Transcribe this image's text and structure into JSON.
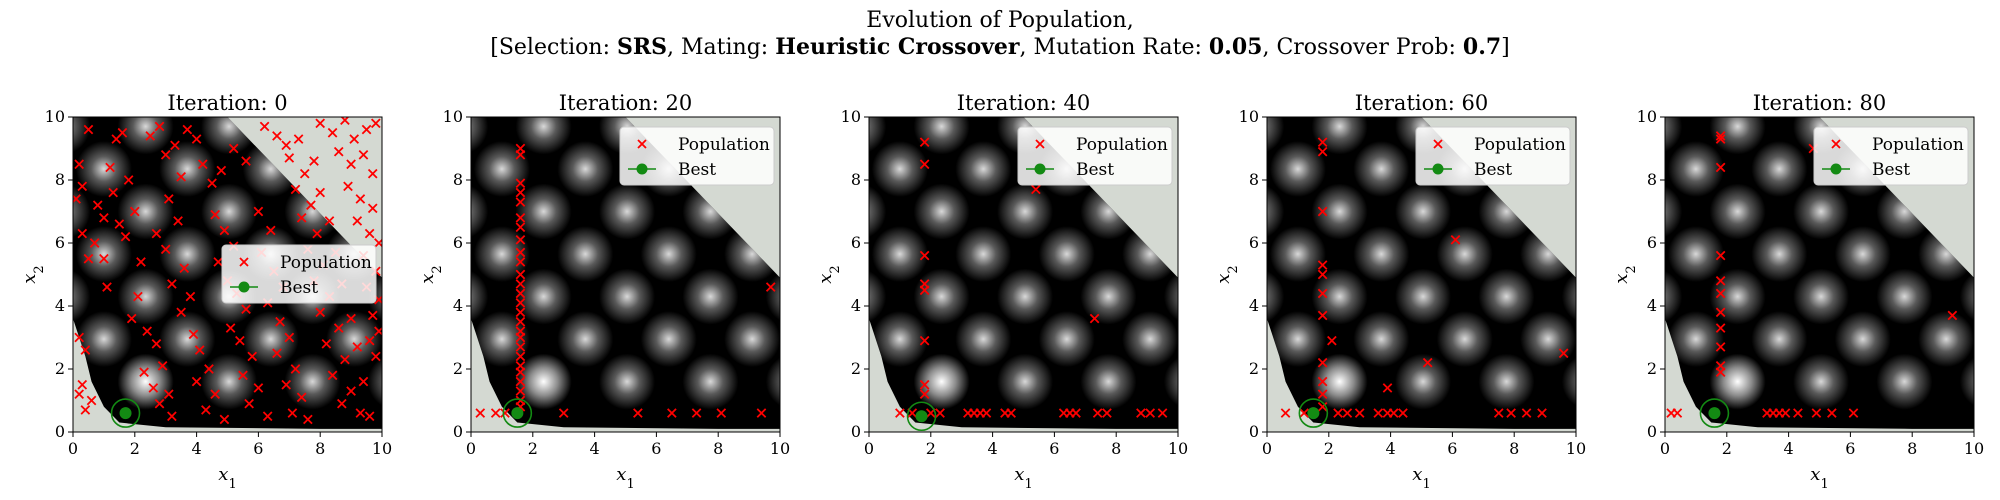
{
  "suptitle": {
    "line1": "Evolution of Population,",
    "selection_label": "Selection: ",
    "selection_value": "SRS",
    "mating_label": ", Mating: ",
    "mating_value": "Heuristic Crossover",
    "mutation_label": ", Mutation Rate: ",
    "mutation_value": "0.05",
    "crossover_label": ", Crossover Prob: ",
    "crossover_value": "0.7"
  },
  "legend": {
    "population": "Population",
    "best": "Best"
  },
  "colors": {
    "population": "#ff0000",
    "best": "#138a13",
    "infeasible": "#d4d9d2",
    "background": "#000000"
  },
  "chart_data": [
    {
      "type": "scatter",
      "title": "Iteration: 0",
      "xlabel": "x1",
      "ylabel": "x2",
      "xlim": [
        0,
        10
      ],
      "ylim": [
        0,
        10
      ],
      "xticks": [
        0,
        2,
        4,
        6,
        8,
        10
      ],
      "yticks": [
        0,
        2,
        4,
        6,
        8,
        10
      ],
      "legend_position": "center-right",
      "best": [
        1.7,
        0.6
      ],
      "population": [
        [
          0.1,
          7.4
        ],
        [
          0.3,
          6.3
        ],
        [
          0.3,
          7.8
        ],
        [
          0.5,
          9.6
        ],
        [
          0.5,
          5.5
        ],
        [
          0.8,
          7.2
        ],
        [
          0.2,
          8.5
        ],
        [
          0.2,
          3.0
        ],
        [
          0.4,
          2.6
        ],
        [
          0.3,
          1.5
        ],
        [
          0.2,
          1.2
        ],
        [
          0.6,
          1.0
        ],
        [
          0.4,
          0.7
        ],
        [
          0.7,
          6.0
        ],
        [
          1.0,
          6.8
        ],
        [
          1.0,
          5.5
        ],
        [
          1.1,
          4.6
        ],
        [
          1.3,
          7.6
        ],
        [
          1.2,
          8.4
        ],
        [
          1.4,
          9.3
        ],
        [
          1.6,
          9.5
        ],
        [
          1.8,
          8.0
        ],
        [
          1.5,
          6.6
        ],
        [
          1.7,
          6.2
        ],
        [
          2.0,
          7.0
        ],
        [
          2.2,
          5.4
        ],
        [
          2.1,
          4.3
        ],
        [
          1.9,
          3.6
        ],
        [
          2.4,
          3.2
        ],
        [
          2.7,
          2.8
        ],
        [
          2.9,
          2.1
        ],
        [
          2.3,
          1.9
        ],
        [
          2.6,
          1.4
        ],
        [
          3.1,
          1.2
        ],
        [
          2.8,
          0.9
        ],
        [
          3.2,
          0.5
        ],
        [
          2.5,
          9.4
        ],
        [
          2.8,
          9.7
        ],
        [
          3.0,
          8.8
        ],
        [
          3.3,
          9.1
        ],
        [
          3.5,
          8.1
        ],
        [
          3.1,
          7.4
        ],
        [
          3.4,
          6.7
        ],
        [
          2.7,
          6.3
        ],
        [
          3.0,
          5.8
        ],
        [
          3.6,
          5.2
        ],
        [
          3.2,
          4.7
        ],
        [
          3.8,
          4.3
        ],
        [
          3.5,
          3.8
        ],
        [
          3.9,
          3.1
        ],
        [
          4.1,
          2.6
        ],
        [
          4.4,
          2.0
        ],
        [
          4.0,
          1.6
        ],
        [
          4.6,
          1.2
        ],
        [
          4.3,
          0.7
        ],
        [
          4.9,
          0.4
        ],
        [
          3.7,
          9.6
        ],
        [
          4.0,
          9.3
        ],
        [
          4.2,
          8.5
        ],
        [
          4.5,
          7.9
        ],
        [
          4.8,
          8.3
        ],
        [
          4.6,
          6.9
        ],
        [
          4.9,
          6.4
        ],
        [
          5.2,
          5.9
        ],
        [
          4.7,
          5.4
        ],
        [
          5.0,
          4.8
        ],
        [
          5.3,
          4.4
        ],
        [
          5.6,
          3.9
        ],
        [
          5.1,
          3.3
        ],
        [
          5.4,
          2.9
        ],
        [
          5.8,
          2.4
        ],
        [
          5.5,
          1.8
        ],
        [
          6.0,
          1.4
        ],
        [
          5.7,
          0.9
        ],
        [
          6.3,
          0.5
        ],
        [
          5.2,
          9.0
        ],
        [
          5.6,
          8.6
        ],
        [
          6.0,
          7.0
        ],
        [
          6.4,
          6.4
        ],
        [
          6.1,
          5.7
        ],
        [
          6.5,
          5.1
        ],
        [
          6.8,
          4.6
        ],
        [
          6.3,
          4.1
        ],
        [
          6.7,
          3.5
        ],
        [
          7.0,
          3.0
        ],
        [
          6.6,
          2.5
        ],
        [
          7.2,
          2.0
        ],
        [
          6.9,
          1.5
        ],
        [
          7.4,
          1.1
        ],
        [
          7.1,
          0.6
        ],
        [
          7.6,
          0.4
        ],
        [
          6.2,
          9.7
        ],
        [
          6.6,
          9.4
        ],
        [
          6.9,
          9.1
        ],
        [
          7.3,
          9.3
        ],
        [
          7.0,
          8.7
        ],
        [
          7.5,
          8.2
        ],
        [
          7.8,
          8.6
        ],
        [
          7.2,
          7.7
        ],
        [
          7.7,
          7.2
        ],
        [
          8.0,
          7.6
        ],
        [
          7.4,
          6.8
        ],
        [
          7.9,
          6.3
        ],
        [
          8.3,
          6.7
        ],
        [
          7.6,
          5.8
        ],
        [
          8.1,
          5.3
        ],
        [
          8.5,
          5.7
        ],
        [
          7.8,
          4.8
        ],
        [
          8.3,
          4.3
        ],
        [
          8.7,
          4.7
        ],
        [
          8.0,
          3.8
        ],
        [
          8.6,
          3.3
        ],
        [
          9.0,
          3.6
        ],
        [
          8.2,
          2.8
        ],
        [
          8.8,
          2.3
        ],
        [
          9.2,
          2.7
        ],
        [
          8.4,
          1.8
        ],
        [
          9.0,
          1.3
        ],
        [
          9.4,
          1.6
        ],
        [
          8.7,
          0.9
        ],
        [
          9.3,
          0.6
        ],
        [
          9.6,
          0.5
        ],
        [
          8.0,
          9.8
        ],
        [
          8.4,
          9.5
        ],
        [
          8.8,
          9.9
        ],
        [
          9.1,
          9.3
        ],
        [
          9.5,
          9.6
        ],
        [
          9.8,
          9.8
        ],
        [
          8.6,
          8.9
        ],
        [
          9.0,
          8.5
        ],
        [
          9.4,
          8.8
        ],
        [
          9.7,
          8.2
        ],
        [
          8.9,
          7.8
        ],
        [
          9.3,
          7.4
        ],
        [
          9.7,
          7.1
        ],
        [
          9.2,
          6.7
        ],
        [
          9.6,
          6.3
        ],
        [
          9.9,
          6.0
        ],
        [
          9.4,
          5.6
        ],
        [
          9.8,
          5.1
        ],
        [
          9.5,
          4.6
        ],
        [
          9.9,
          4.2
        ],
        [
          9.7,
          3.7
        ],
        [
          9.9,
          3.2
        ],
        [
          9.6,
          2.9
        ],
        [
          9.8,
          2.4
        ]
      ]
    },
    {
      "type": "scatter",
      "title": "Iteration: 20",
      "xlabel": "x1",
      "ylabel": "x2",
      "xlim": [
        0,
        10
      ],
      "ylim": [
        0,
        10
      ],
      "xticks": [
        0,
        2,
        4,
        6,
        8,
        10
      ],
      "yticks": [
        0,
        2,
        4,
        6,
        8,
        10
      ],
      "legend_position": "top-right",
      "best": [
        1.5,
        0.6
      ],
      "population": [
        [
          1.6,
          9.0
        ],
        [
          1.6,
          8.8
        ],
        [
          1.6,
          7.9
        ],
        [
          1.6,
          7.6
        ],
        [
          1.6,
          7.3
        ],
        [
          1.6,
          6.8
        ],
        [
          1.6,
          6.5
        ],
        [
          1.6,
          6.1
        ],
        [
          1.6,
          5.7
        ],
        [
          1.6,
          5.4
        ],
        [
          1.6,
          5.0
        ],
        [
          1.6,
          4.7
        ],
        [
          1.6,
          4.4
        ],
        [
          1.6,
          4.1
        ],
        [
          1.6,
          3.8
        ],
        [
          1.6,
          3.5
        ],
        [
          1.6,
          3.2
        ],
        [
          1.6,
          3.0
        ],
        [
          1.6,
          2.7
        ],
        [
          1.6,
          2.4
        ],
        [
          1.6,
          2.1
        ],
        [
          1.6,
          1.9
        ],
        [
          1.6,
          1.6
        ],
        [
          1.6,
          1.3
        ],
        [
          1.6,
          1.0
        ],
        [
          1.6,
          0.8
        ],
        [
          0.3,
          0.6
        ],
        [
          0.8,
          0.6
        ],
        [
          1.1,
          0.6
        ],
        [
          3.0,
          0.6
        ],
        [
          5.4,
          0.6
        ],
        [
          6.5,
          0.6
        ],
        [
          7.3,
          0.6
        ],
        [
          8.1,
          0.6
        ],
        [
          9.4,
          0.6
        ],
        [
          9.7,
          4.6
        ]
      ]
    },
    {
      "type": "scatter",
      "title": "Iteration: 40",
      "xlabel": "x1",
      "ylabel": "x2",
      "xlim": [
        0,
        10
      ],
      "ylim": [
        0,
        10
      ],
      "xticks": [
        0,
        2,
        4,
        6,
        8,
        10
      ],
      "yticks": [
        0,
        2,
        4,
        6,
        8,
        10
      ],
      "legend_position": "top-right",
      "best": [
        1.7,
        0.5
      ],
      "population": [
        [
          1.8,
          9.2
        ],
        [
          1.8,
          8.5
        ],
        [
          1.8,
          5.6
        ],
        [
          1.8,
          4.7
        ],
        [
          1.8,
          4.5
        ],
        [
          1.8,
          2.9
        ],
        [
          1.8,
          1.5
        ],
        [
          1.8,
          1.2
        ],
        [
          1.0,
          0.6
        ],
        [
          1.4,
          0.6
        ],
        [
          2.0,
          0.6
        ],
        [
          2.3,
          0.6
        ],
        [
          3.2,
          0.6
        ],
        [
          3.4,
          0.6
        ],
        [
          3.6,
          0.6
        ],
        [
          3.8,
          0.6
        ],
        [
          4.4,
          0.6
        ],
        [
          4.6,
          0.6
        ],
        [
          6.3,
          0.6
        ],
        [
          6.5,
          0.6
        ],
        [
          6.7,
          0.6
        ],
        [
          7.4,
          0.6
        ],
        [
          7.7,
          0.6
        ],
        [
          8.8,
          0.6
        ],
        [
          9.1,
          0.6
        ],
        [
          9.5,
          0.6
        ],
        [
          5.4,
          7.7
        ],
        [
          7.3,
          3.6
        ]
      ]
    },
    {
      "type": "scatter",
      "title": "Iteration: 60",
      "xlabel": "x1",
      "ylabel": "x2",
      "xlim": [
        0,
        10
      ],
      "ylim": [
        0,
        10
      ],
      "xticks": [
        0,
        2,
        4,
        6,
        8,
        10
      ],
      "yticks": [
        0,
        2,
        4,
        6,
        8,
        10
      ],
      "legend_position": "top-right",
      "best": [
        1.5,
        0.6
      ],
      "population": [
        [
          1.8,
          9.2
        ],
        [
          1.8,
          8.9
        ],
        [
          1.8,
          7.0
        ],
        [
          1.8,
          5.3
        ],
        [
          1.8,
          5.0
        ],
        [
          1.8,
          4.4
        ],
        [
          1.8,
          3.7
        ],
        [
          1.8,
          2.2
        ],
        [
          1.8,
          1.6
        ],
        [
          1.8,
          1.2
        ],
        [
          1.8,
          0.8
        ],
        [
          2.1,
          2.9
        ],
        [
          0.6,
          0.6
        ],
        [
          1.2,
          0.6
        ],
        [
          2.3,
          0.6
        ],
        [
          2.6,
          0.6
        ],
        [
          3.0,
          0.6
        ],
        [
          3.6,
          0.6
        ],
        [
          3.9,
          0.6
        ],
        [
          4.1,
          0.6
        ],
        [
          4.4,
          0.6
        ],
        [
          7.5,
          0.6
        ],
        [
          7.9,
          0.6
        ],
        [
          8.4,
          0.6
        ],
        [
          8.9,
          0.6
        ],
        [
          3.9,
          1.4
        ],
        [
          5.2,
          2.2
        ],
        [
          6.1,
          6.1
        ],
        [
          9.6,
          2.5
        ]
      ]
    },
    {
      "type": "scatter",
      "title": "Iteration: 80",
      "xlabel": "x1",
      "ylabel": "x2",
      "xlim": [
        0,
        10
      ],
      "ylim": [
        0,
        10
      ],
      "xticks": [
        0,
        2,
        4,
        6,
        8,
        10
      ],
      "yticks": [
        0,
        2,
        4,
        6,
        8,
        10
      ],
      "legend_position": "top-right",
      "best": [
        1.6,
        0.6
      ],
      "population": [
        [
          1.8,
          9.4
        ],
        [
          1.8,
          9.3
        ],
        [
          1.8,
          8.4
        ],
        [
          1.8,
          5.6
        ],
        [
          1.8,
          4.8
        ],
        [
          1.8,
          4.4
        ],
        [
          1.8,
          3.8
        ],
        [
          1.8,
          3.3
        ],
        [
          1.8,
          2.7
        ],
        [
          1.8,
          2.1
        ],
        [
          1.8,
          1.9
        ],
        [
          0.2,
          0.6
        ],
        [
          0.4,
          0.6
        ],
        [
          3.3,
          0.6
        ],
        [
          3.5,
          0.6
        ],
        [
          3.7,
          0.6
        ],
        [
          3.9,
          0.6
        ],
        [
          4.3,
          0.6
        ],
        [
          4.9,
          0.6
        ],
        [
          5.4,
          0.6
        ],
        [
          6.1,
          0.6
        ],
        [
          4.8,
          9.0
        ],
        [
          9.3,
          3.7
        ]
      ]
    }
  ]
}
